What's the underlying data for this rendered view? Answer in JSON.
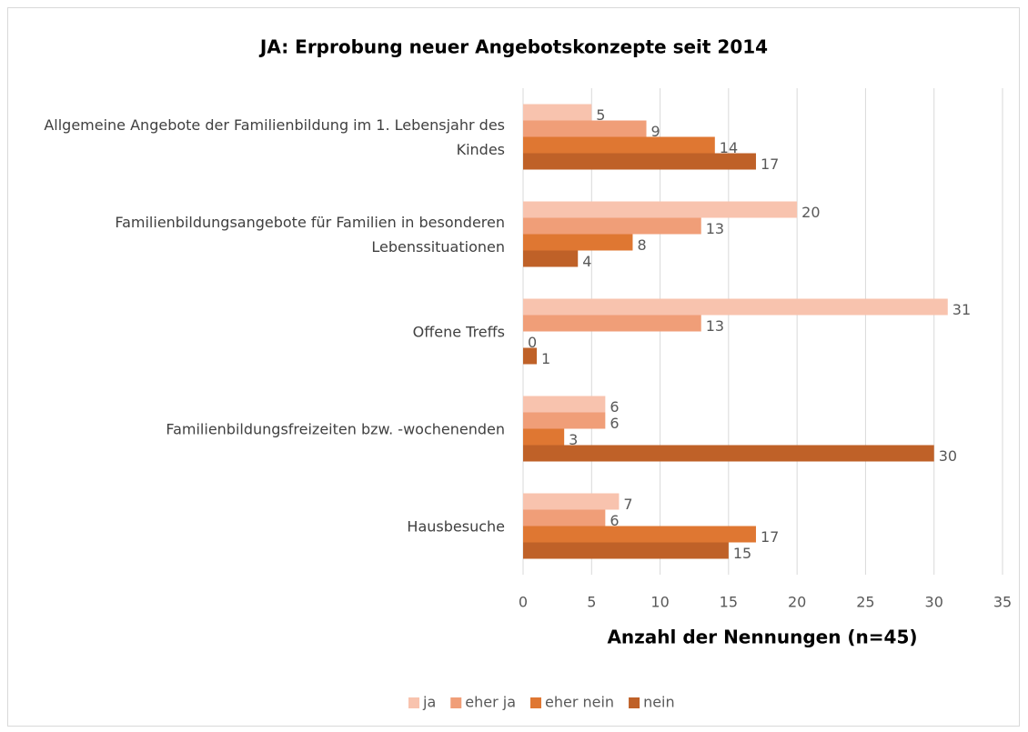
{
  "chart_data": {
    "type": "bar",
    "orientation": "horizontal",
    "title": "JA: Erprobung neuer Angebotskonzepte seit 2014",
    "x_label": "Anzahl der Nennungen (n=45)",
    "categories": [
      "Allgemeine Angebote der Familienbildung im 1. Lebensjahr des Kindes",
      "Familienbildungsangebote für Familien in besonderen Lebenssituationen",
      "Offene Treffs",
      "Familienbildungsfreizeiten bzw. -wochenenden",
      "Hausbesuche"
    ],
    "series": [
      {
        "name": "ja",
        "color": "#f8c3ae",
        "values": [
          5,
          20,
          31,
          6,
          7
        ]
      },
      {
        "name": "eher ja",
        "color": "#f09e78",
        "values": [
          9,
          13,
          13,
          6,
          6
        ]
      },
      {
        "name": "eher nein",
        "color": "#df7732",
        "values": [
          14,
          8,
          0,
          3,
          17
        ]
      },
      {
        "name": "nein",
        "color": "#bf6128",
        "values": [
          17,
          4,
          1,
          30,
          15
        ]
      }
    ],
    "xlim": [
      0,
      35
    ],
    "xticks": [
      0,
      5,
      10,
      15,
      20,
      25,
      30,
      35
    ],
    "grid": true,
    "legend": "bottom"
  }
}
